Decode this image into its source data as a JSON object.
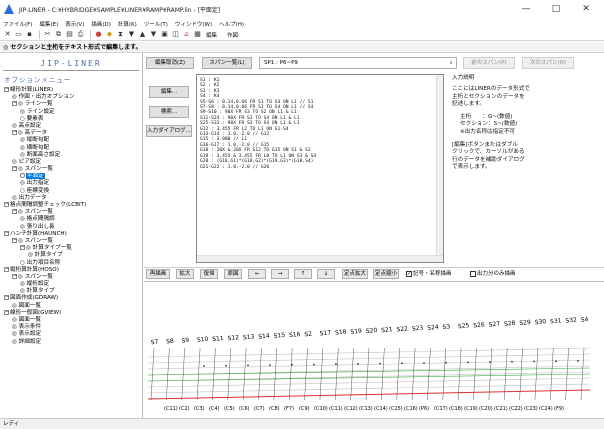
{
  "window": {
    "title": "JIP-LINER - C:¥HYBRIDGE¥SAMPLE¥LINER¥RAMP¥RAMP.lin - [平面定]",
    "minimize": "—",
    "maximize": "□",
    "close": "✕"
  },
  "menu": [
    "ファイル(F)",
    "編集(E)",
    "表示(V)",
    "描画(D)",
    "計算(K)",
    "ツール(T)",
    "ウィンドウ(W)",
    "ヘルプ(H)"
  ],
  "toolbar": {
    "edit_label": "編集",
    "draw_label": "作図"
  },
  "banner": "◎ セクションと主桁をテキスト形式で編集します。",
  "sidebar": {
    "brand": "JIP-LINER",
    "option_menu": "オプションメニュー",
    "tree": [
      {
        "indent": 0,
        "exp": "−",
        "label": "線形計算(LINER)"
      },
      {
        "indent": 1,
        "label": "◎ 作図・出力オプション"
      },
      {
        "indent": 1,
        "exp": "−",
        "label": "◎ ライン一覧"
      },
      {
        "indent": 2,
        "label": "◎ ライン設定"
      },
      {
        "indent": 2,
        "label": "○ 要素表"
      },
      {
        "indent": 1,
        "label": "◎ 高点設定"
      },
      {
        "indent": 1,
        "exp": "−",
        "label": "◎ 高データ"
      },
      {
        "indent": 2,
        "label": "◎ 縦断勾配"
      },
      {
        "indent": 2,
        "label": "◎ 横断勾配"
      },
      {
        "indent": 2,
        "label": "◎ 断面高さ設定"
      },
      {
        "indent": 1,
        "label": "◎ ピア設定"
      },
      {
        "indent": 1,
        "exp": "−",
        "label": "◎ スパン一覧"
      },
      {
        "indent": 2,
        "label": "平面定",
        "selected": true
      },
      {
        "indent": 2,
        "label": "◎ 出力指定"
      },
      {
        "indent": 2,
        "label": "○ 座標変換"
      },
      {
        "indent": 1,
        "label": "◎ 出力データ"
      },
      {
        "indent": 0,
        "exp": "−",
        "label": "格点間隔調整チェック(LCBIT)"
      },
      {
        "indent": 1,
        "exp": "−",
        "label": "◎ スパン一覧"
      },
      {
        "indent": 2,
        "label": "◎ 格点間隔調"
      },
      {
        "indent": 2,
        "label": "◎ 張り出し長"
      },
      {
        "indent": 0,
        "exp": "−",
        "label": "ハンチ計算(HAUNCH)"
      },
      {
        "indent": 1,
        "exp": "−",
        "label": "◎ スパン一覧"
      },
      {
        "indent": 2,
        "exp": "−",
        "label": "◎ 計算タイプ一覧"
      },
      {
        "indent": 3,
        "label": "◎ 計算タイプ"
      },
      {
        "indent": 2,
        "label": "○ 出力項目名称"
      },
      {
        "indent": 0,
        "exp": "−",
        "label": "縦桁算計算(HOSO)"
      },
      {
        "indent": 1,
        "exp": "−",
        "label": "◎ スパン一覧"
      },
      {
        "indent": 2,
        "label": "◎ 縦桁設定"
      },
      {
        "indent": 2,
        "label": "◎ 計算タイプ"
      },
      {
        "indent": 0,
        "exp": "−",
        "label": "図面作成(GDRAW)"
      },
      {
        "indent": 1,
        "label": "◎ 図面一覧"
      },
      {
        "indent": 0,
        "exp": "−",
        "label": "線形一般図(GVIEW)"
      },
      {
        "indent": 1,
        "label": "◎ 図面一覧"
      },
      {
        "indent": 1,
        "label": "◎ 表示条件"
      },
      {
        "indent": 1,
        "label": "◎ 表示設定"
      },
      {
        "indent": 1,
        "label": "◎ 詳細設定"
      }
    ]
  },
  "main": {
    "top_buttons": {
      "undo": "編集取消(Z)",
      "span_list": "スパン一覧(L)",
      "combo_value": "SP1 : P6~P9",
      "prev_span": "前のスパン(P)",
      "next_span": "次のスパン(N)"
    },
    "left_buttons": {
      "edit": "編集...",
      "search": "検索...",
      "input_dialog": "入力ダイアログ..."
    },
    "editor_lines": [
      "S1 : K1",
      "S2 : K2",
      "S3 : K3",
      "S4 : K4",
      "S5-S6 : 0.14,0.66 FR S1 TO S4 ON L1 // S1",
      "S7-S8 : 0.14,0.66 FR S1 TO S4 ON L1 // S4",
      "S9-S10 : 90X FR S3 TO S2 ON L1 & L1",
      "S11-S24 : 90X FR S3 TO S4 ON L1 & L1",
      "S25-S32 : 90X FR S3 TO S4 ON L1 & L1",
      "G12 : 3.455 FR L2 TO L1 ON S1-S4",
      "G13-G14 : 1.0,-2.0 // G12",
      "G15 : 3.000 // L1",
      "G16-G17 : 1.0,-2.0 // G15",
      "G18 : 20X & 20X FR G12 TO G15 ON S1 & S2",
      "G19 : 3.455 & 3.455 FR L0 TO L1 ON S3 & S4",
      "G20 : (G18,G1)*(G18,G2)*(G19,G3)*(G18,S4)",
      "G21-G22 : 1.0,-2.0 // G20"
    ],
    "help": {
      "title": "入力説明",
      "lines1": [
        "ここにはLINERのデータ形式で",
        "主桁とセクションのデータを",
        "記述します。"
      ],
      "lines2": [
        "主桁　　：G~(数値)",
        "セクション：S~(数値)",
        "※出力名称は指定不可"
      ],
      "lines3": [
        "[編集]ボタンまたはダブル",
        "クリックで、カーソルがある",
        "行のデータを補助ダイアログ",
        "で表示します。"
      ]
    },
    "view_buttons": {
      "redraw": "再描画",
      "zoom_in": "拡大",
      "restore": "復帰",
      "reset": "原図",
      "left": "←",
      "right": "→",
      "up": "↑",
      "down": "↓",
      "fixed_zoom_in": "定点拡大",
      "fixed_zoom_out": "定点縮小"
    },
    "checkboxes": {
      "symbol_names": "記号・名称描画",
      "symbol_names_checked": "✓",
      "output_only": "出力分のみ描画"
    },
    "canvas": {
      "section_labels": [
        "S7",
        "S8",
        "S9",
        "S10",
        "S11",
        "S12",
        "S13",
        "S14",
        "S15",
        "S16",
        "S2",
        "S17",
        "S18",
        "S19",
        "S20",
        "S21",
        "S22",
        "S23",
        "S24",
        "S3",
        "S25",
        "S26",
        "S27",
        "S28",
        "S29",
        "S30",
        "S31",
        "S32",
        "S4"
      ],
      "girder_labels": [
        "(C11)",
        "(C2)",
        "(C3)",
        "(C4)",
        "(C5)",
        "(C6)",
        "(C7)",
        "(C8)",
        "(F7)",
        "(C9)",
        "(C10)",
        "(C11)",
        "(C12)",
        "(C13)",
        "(C14)",
        "(C15)",
        "(C16)",
        "(P6)",
        "(C17)",
        "(C18)",
        "(C19)",
        "(C20)",
        "(C21)",
        "(C22)",
        "(C23)",
        "(C24)",
        "(F9)"
      ],
      "line_color": "#c0c0c0",
      "red_color": "#e03030",
      "green_color": "#40b040"
    }
  },
  "status": "レディ"
}
